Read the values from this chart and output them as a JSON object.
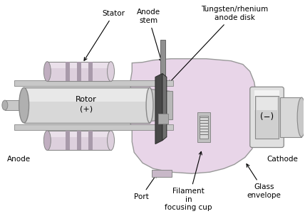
{
  "bg_color": "#ffffff",
  "label_color": "#000000",
  "rotor_color_body": "#d8d8d8",
  "rotor_color_light": "#f0f0f0",
  "rotor_color_dark": "#b0b0b0",
  "stator_color_body": "#ddd0dd",
  "stator_color_stripe": "#a89aaa",
  "envelope_color": "#e8d5e8",
  "envelope_edge": "#999999",
  "cathode_color": "#d8d8d8",
  "disk_color": "#505050",
  "gray_edge": "#888888",
  "labels": {
    "stator": "Stator",
    "rotor": "Rotor",
    "rotor_sign": "(+)",
    "anode": "Anode",
    "anode_stem": "Anode\nstem",
    "tungsten": "Tungsten/rhenium\nanode disk",
    "cathode": "Cathode",
    "cathode_sign": "(−)",
    "port": "Port",
    "filament": "Filament\nin\nfocusing cup",
    "glass": "Glass\nenvelope"
  }
}
